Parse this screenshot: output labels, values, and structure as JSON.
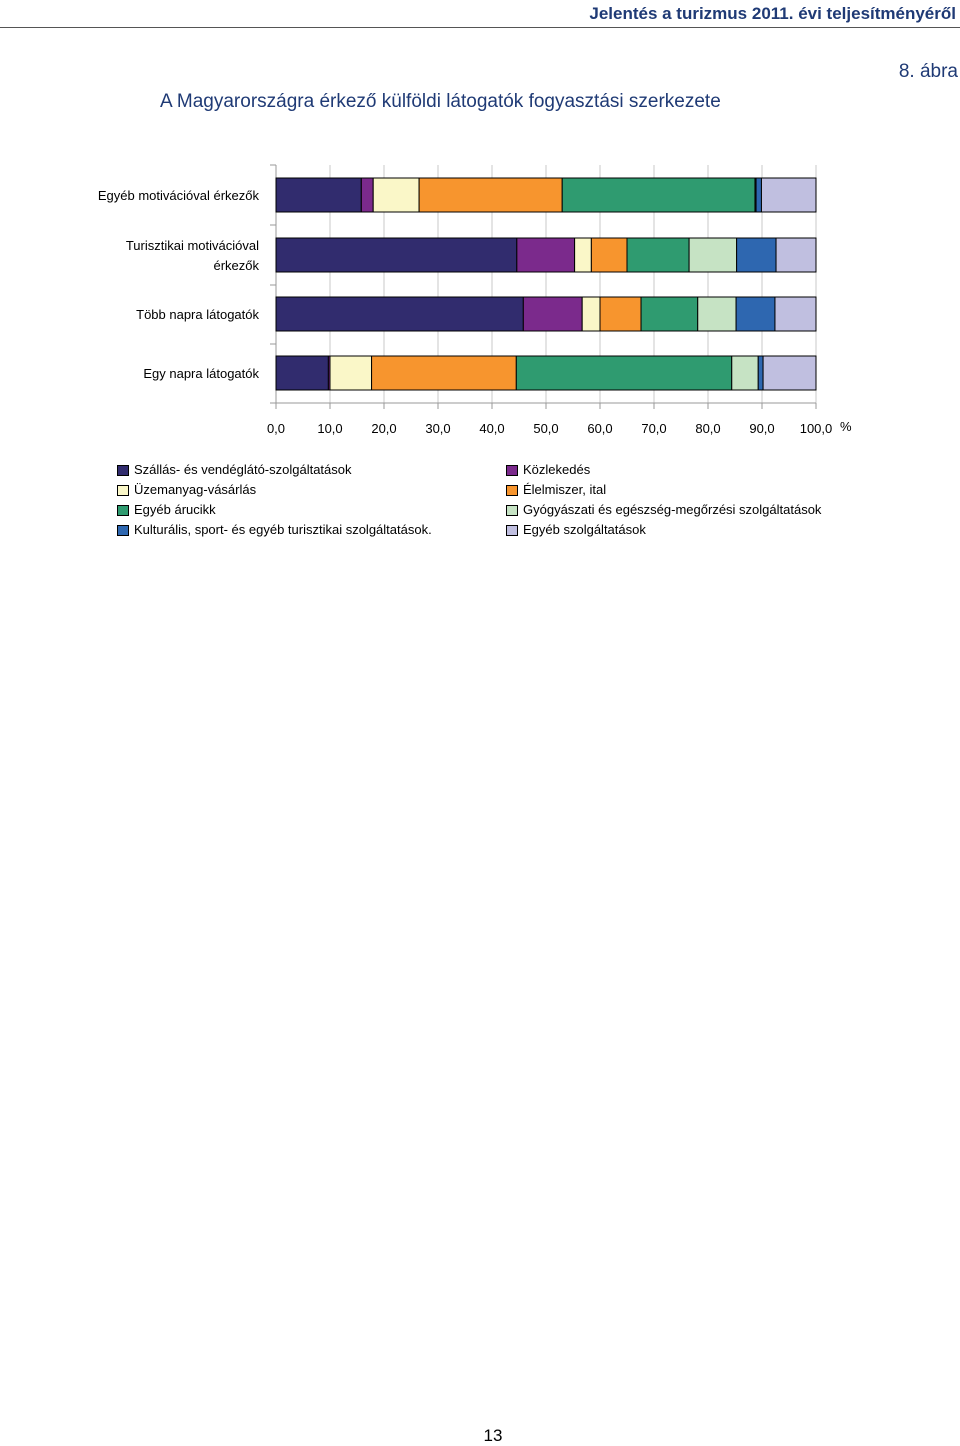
{
  "header": {
    "title": "Jelentés a turizmus 2011. évi teljesítményéről"
  },
  "figure_label": "8. ábra",
  "page_number": "13",
  "chart_data": {
    "type": "bar",
    "orientation": "horizontal",
    "stacked": true,
    "title": "A Magyarországra érkező külföldi látogatók fogyasztási szerkezete",
    "categories": [
      "Egyéb motivációval érkezők",
      "Turisztikai motivációval érkezők",
      "Több napra látogatók",
      "Egy napra látogatók"
    ],
    "category_display": [
      [
        "Egyéb motivációval érkezők"
      ],
      [
        "Turisztikai motivációval",
        "érkezők"
      ],
      [
        "Több napra látogatók"
      ],
      [
        "Egy napra látogatók"
      ]
    ],
    "xlim": [
      0,
      100
    ],
    "xticks": [
      0,
      10,
      20,
      30,
      40,
      50,
      60,
      70,
      80,
      90,
      100
    ],
    "xtick_labels": [
      "0,0",
      "10,0",
      "20,0",
      "30,0",
      "40,0",
      "50,0",
      "60,0",
      "70,0",
      "80,0",
      "90,0",
      "100,0"
    ],
    "xunit": "%",
    "legend_position": "bottom",
    "series": [
      {
        "name": "Szállás- és vendéglátó-szolgáltatások",
        "color": "#312c6e",
        "values": [
          15.8,
          44.6,
          45.8,
          9.7
        ]
      },
      {
        "name": "Közlekedés",
        "color": "#7b2a8c",
        "values": [
          2.2,
          10.7,
          10.9,
          0.3
        ]
      },
      {
        "name": "Üzemanyag-vásárlás",
        "color": "#faf7c8",
        "values": [
          8.5,
          3.1,
          3.3,
          7.7
        ]
      },
      {
        "name": "Élelmiszer, ital",
        "color": "#f7952e",
        "values": [
          26.5,
          6.6,
          7.6,
          26.8
        ]
      },
      {
        "name": "Egyéb árucikk",
        "color": "#2f9b70",
        "values": [
          35.7,
          11.5,
          10.5,
          39.9
        ]
      },
      {
        "name": "Gyógyászati és egészség-megőrzési szolgáltatások",
        "color": "#c6e3c4",
        "values": [
          0.2,
          8.8,
          7.1,
          4.9
        ]
      },
      {
        "name": "Kulturális, sport- és egyéb turisztikai szolgáltatások",
        "color": "#2e67b0",
        "values": [
          1.0,
          7.3,
          7.2,
          0.9
        ]
      },
      {
        "name": "Egyéb szolgáltatások",
        "color": "#c0bfe0",
        "values": [
          10.1,
          7.4,
          7.6,
          9.8
        ]
      }
    ],
    "legend_rows": [
      [
        "Szállás- és vendéglátó-szolgáltatások",
        "Közlekedés"
      ],
      [
        "Üzemanyag-vásárlás",
        "Élelmiszer, ital"
      ],
      [
        "Egyéb árucikk",
        "Gyógyászati és egészség-megőrzési szolgáltatások"
      ],
      [
        "Kulturális, sport- és egyéb turisztikai szolgáltatások.",
        "Egyéb szolgáltatások"
      ]
    ]
  }
}
